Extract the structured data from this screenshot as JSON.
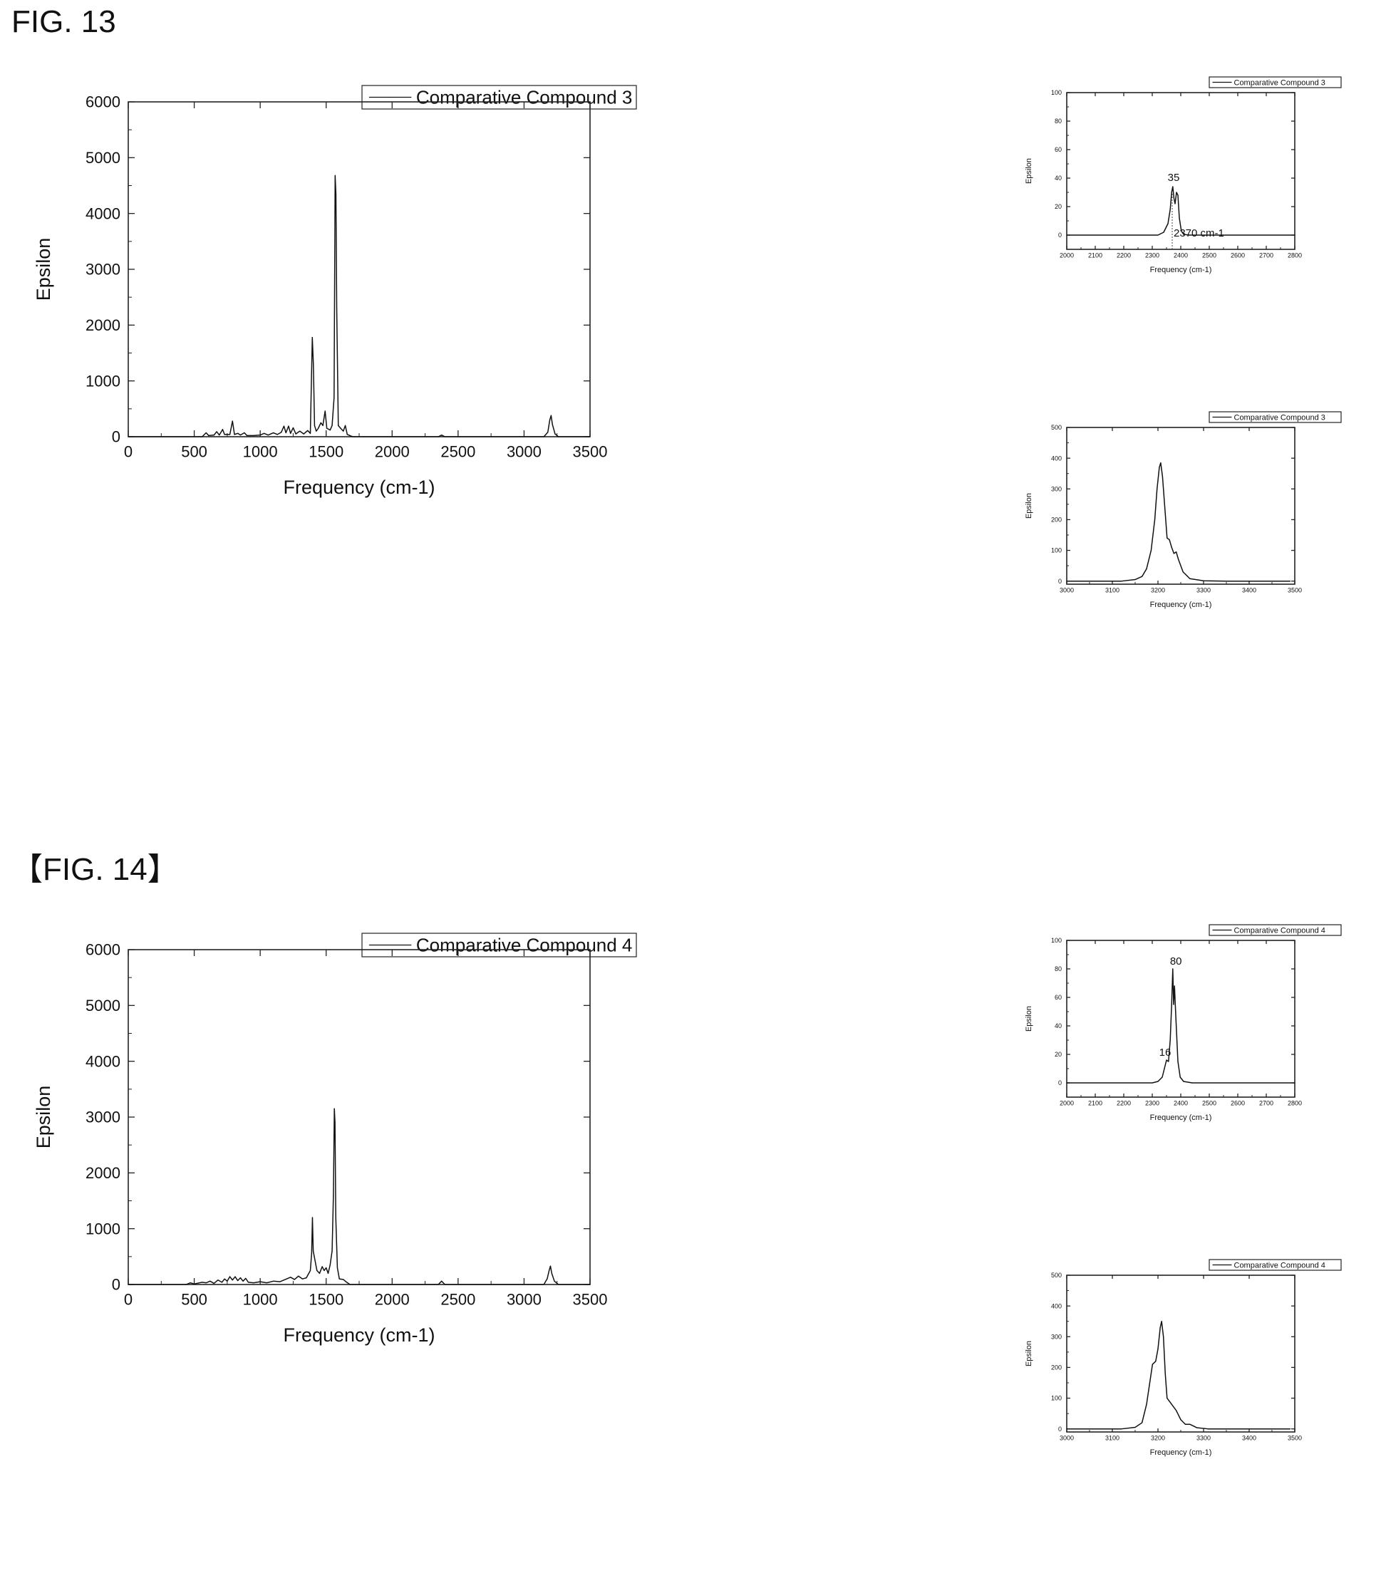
{
  "figures": [
    {
      "label": "FIG. 13"
    },
    {
      "label": "【FIG. 14】"
    }
  ],
  "chart_data": [
    {
      "type": "line",
      "figure": "FIG. 13",
      "legend": "Comparative Compound 3",
      "xlabel": "Frequency (cm-1)",
      "ylabel": "Epsilon",
      "xlim": [
        0,
        3500
      ],
      "ylim": [
        0,
        6000
      ],
      "xticks": [
        0,
        500,
        1000,
        1500,
        2000,
        2500,
        3000,
        3500
      ],
      "yticks": [
        0,
        1000,
        2000,
        3000,
        4000,
        5000,
        6000
      ],
      "series": [
        {
          "name": "Comparative Compound 3",
          "color": "#111111",
          "points": [
            [
              0,
              0
            ],
            [
              560,
              0
            ],
            [
              590,
              70
            ],
            [
              610,
              20
            ],
            [
              650,
              30
            ],
            [
              670,
              90
            ],
            [
              690,
              30
            ],
            [
              715,
              130
            ],
            [
              730,
              40
            ],
            [
              770,
              40
            ],
            [
              790,
              280
            ],
            [
              805,
              40
            ],
            [
              830,
              60
            ],
            [
              850,
              30
            ],
            [
              880,
              70
            ],
            [
              900,
              20
            ],
            [
              950,
              20
            ],
            [
              1000,
              30
            ],
            [
              1030,
              60
            ],
            [
              1060,
              30
            ],
            [
              1100,
              70
            ],
            [
              1130,
              40
            ],
            [
              1160,
              80
            ],
            [
              1180,
              190
            ],
            [
              1195,
              70
            ],
            [
              1215,
              190
            ],
            [
              1230,
              60
            ],
            [
              1250,
              160
            ],
            [
              1270,
              50
            ],
            [
              1300,
              100
            ],
            [
              1330,
              50
            ],
            [
              1360,
              110
            ],
            [
              1380,
              60
            ],
            [
              1395,
              1780
            ],
            [
              1403,
              1300
            ],
            [
              1412,
              200
            ],
            [
              1425,
              100
            ],
            [
              1440,
              150
            ],
            [
              1460,
              250
            ],
            [
              1475,
              200
            ],
            [
              1492,
              460
            ],
            [
              1505,
              150
            ],
            [
              1530,
              120
            ],
            [
              1545,
              200
            ],
            [
              1560,
              700
            ],
            [
              1568,
              4680
            ],
            [
              1574,
              4350
            ],
            [
              1580,
              2300
            ],
            [
              1592,
              200
            ],
            [
              1610,
              150
            ],
            [
              1630,
              100
            ],
            [
              1645,
              200
            ],
            [
              1660,
              40
            ],
            [
              1700,
              0
            ],
            [
              2350,
              0
            ],
            [
              2375,
              30
            ],
            [
              2400,
              0
            ],
            [
              3150,
              0
            ],
            [
              3180,
              80
            ],
            [
              3195,
              300
            ],
            [
              3205,
              380
            ],
            [
              3215,
              220
            ],
            [
              3235,
              50
            ],
            [
              3260,
              0
            ],
            [
              3500,
              0
            ]
          ]
        }
      ]
    },
    {
      "type": "line",
      "figure": "FIG. 13",
      "legend": "Comparative Compound 3",
      "xlabel": "Frequency (cm-1)",
      "ylabel": "Epsilon",
      "xlim": [
        2000,
        2800
      ],
      "ylim": [
        -10,
        100
      ],
      "xticks": [
        2000,
        2100,
        2200,
        2300,
        2400,
        2500,
        2600,
        2700,
        2800
      ],
      "yticks": [
        0,
        20,
        40,
        60,
        80,
        100
      ],
      "annotations": [
        {
          "text": "35",
          "x": 2370,
          "y": 35
        },
        {
          "text": "2370 cm-1",
          "x": 2370,
          "y": -4
        }
      ],
      "vline": 2370,
      "series": [
        {
          "name": "Comparative Compound 3",
          "color": "#111111",
          "points": [
            [
              2000,
              0
            ],
            [
              2320,
              0
            ],
            [
              2340,
              2
            ],
            [
              2355,
              8
            ],
            [
              2363,
              18
            ],
            [
              2368,
              30
            ],
            [
              2372,
              34
            ],
            [
              2376,
              26
            ],
            [
              2380,
              22
            ],
            [
              2385,
              30
            ],
            [
              2390,
              28
            ],
            [
              2395,
              12
            ],
            [
              2402,
              3
            ],
            [
              2410,
              0.5
            ],
            [
              2430,
              0
            ],
            [
              2800,
              0
            ]
          ]
        }
      ]
    },
    {
      "type": "line",
      "figure": "FIG. 13",
      "legend": "Comparative Compound 3",
      "xlabel": "Frequency (cm-1)",
      "ylabel": "Epsilon",
      "xlim": [
        3000,
        3500
      ],
      "ylim": [
        -10,
        500
      ],
      "xticks": [
        3000,
        3100,
        3200,
        3300,
        3400,
        3500
      ],
      "yticks": [
        0,
        100,
        200,
        300,
        400,
        500
      ],
      "series": [
        {
          "name": "Comparative Compound 3",
          "color": "#111111",
          "points": [
            [
              3000,
              0
            ],
            [
              3120,
              0
            ],
            [
              3150,
              5
            ],
            [
              3165,
              15
            ],
            [
              3175,
              40
            ],
            [
              3185,
              100
            ],
            [
              3193,
              200
            ],
            [
              3198,
              300
            ],
            [
              3203,
              370
            ],
            [
              3206,
              385
            ],
            [
              3210,
              340
            ],
            [
              3215,
              240
            ],
            [
              3220,
              140
            ],
            [
              3225,
              135
            ],
            [
              3230,
              110
            ],
            [
              3235,
              90
            ],
            [
              3240,
              95
            ],
            [
              3245,
              70
            ],
            [
              3255,
              30
            ],
            [
              3270,
              8
            ],
            [
              3300,
              1
            ],
            [
              3350,
              0
            ],
            [
              3490,
              0
            ]
          ]
        }
      ]
    },
    {
      "type": "line",
      "figure": "【FIG. 14】",
      "legend": "Comparative Compound 4",
      "xlabel": "Frequency (cm-1)",
      "ylabel": "Epsilon",
      "xlim": [
        0,
        3500
      ],
      "ylim": [
        0,
        6000
      ],
      "xticks": [
        0,
        500,
        1000,
        1500,
        2000,
        2500,
        3000,
        3500
      ],
      "yticks": [
        0,
        1000,
        2000,
        3000,
        4000,
        5000,
        6000
      ],
      "series": [
        {
          "name": "Comparative Compound 4",
          "color": "#111111",
          "points": [
            [
              0,
              0
            ],
            [
              440,
              0
            ],
            [
              470,
              30
            ],
            [
              500,
              10
            ],
            [
              560,
              40
            ],
            [
              590,
              30
            ],
            [
              620,
              60
            ],
            [
              650,
              20
            ],
            [
              680,
              80
            ],
            [
              710,
              40
            ],
            [
              730,
              100
            ],
            [
              750,
              60
            ],
            [
              770,
              140
            ],
            [
              790,
              80
            ],
            [
              810,
              140
            ],
            [
              830,
              70
            ],
            [
              850,
              120
            ],
            [
              870,
              60
            ],
            [
              890,
              110
            ],
            [
              910,
              40
            ],
            [
              950,
              30
            ],
            [
              1000,
              50
            ],
            [
              1050,
              30
            ],
            [
              1100,
              60
            ],
            [
              1150,
              50
            ],
            [
              1200,
              100
            ],
            [
              1230,
              130
            ],
            [
              1260,
              90
            ],
            [
              1290,
              150
            ],
            [
              1320,
              100
            ],
            [
              1350,
              120
            ],
            [
              1380,
              250
            ],
            [
              1390,
              560
            ],
            [
              1396,
              1200
            ],
            [
              1402,
              600
            ],
            [
              1410,
              500
            ],
            [
              1430,
              250
            ],
            [
              1450,
              200
            ],
            [
              1470,
              320
            ],
            [
              1485,
              250
            ],
            [
              1500,
              300
            ],
            [
              1515,
              200
            ],
            [
              1530,
              350
            ],
            [
              1545,
              600
            ],
            [
              1555,
              1600
            ],
            [
              1562,
              3150
            ],
            [
              1567,
              2900
            ],
            [
              1573,
              1200
            ],
            [
              1585,
              300
            ],
            [
              1600,
              100
            ],
            [
              1630,
              90
            ],
            [
              1650,
              50
            ],
            [
              1680,
              0
            ],
            [
              2350,
              0
            ],
            [
              2375,
              60
            ],
            [
              2400,
              0
            ],
            [
              3150,
              0
            ],
            [
              3175,
              100
            ],
            [
              3190,
              250
            ],
            [
              3200,
              330
            ],
            [
              3210,
              200
            ],
            [
              3230,
              60
            ],
            [
              3260,
              0
            ],
            [
              3500,
              0
            ]
          ]
        }
      ]
    },
    {
      "type": "line",
      "figure": "【FIG. 14】",
      "legend": "Comparative Compound 4",
      "xlabel": "Frequency (cm-1)",
      "ylabel": "Epsilon",
      "xlim": [
        2000,
        2800
      ],
      "ylim": [
        -10,
        100
      ],
      "xticks": [
        2000,
        2100,
        2200,
        2300,
        2400,
        2500,
        2600,
        2700,
        2800
      ],
      "yticks": [
        0,
        20,
        40,
        60,
        80,
        100
      ],
      "annotations": [
        {
          "text": "80",
          "x": 2378,
          "y": 80
        },
        {
          "text": "16",
          "x": 2340,
          "y": 16
        }
      ],
      "series": [
        {
          "name": "Comparative Compound 4",
          "color": "#111111",
          "points": [
            [
              2000,
              0
            ],
            [
              2300,
              0
            ],
            [
              2320,
              1
            ],
            [
              2335,
              4
            ],
            [
              2345,
              12
            ],
            [
              2350,
              16
            ],
            [
              2357,
              15
            ],
            [
              2363,
              30
            ],
            [
              2368,
              55
            ],
            [
              2372,
              80
            ],
            [
              2375,
              55
            ],
            [
              2378,
              68
            ],
            [
              2383,
              45
            ],
            [
              2390,
              15
            ],
            [
              2398,
              4
            ],
            [
              2410,
              1
            ],
            [
              2440,
              0
            ],
            [
              2800,
              0
            ]
          ]
        }
      ]
    },
    {
      "type": "line",
      "figure": "【FIG. 14】",
      "legend": "Comparative Compound 4",
      "xlabel": "Frequency (cm-1)",
      "ylabel": "Epsilon",
      "xlim": [
        3000,
        3500
      ],
      "ylim": [
        -10,
        500
      ],
      "xticks": [
        3000,
        3100,
        3200,
        3300,
        3400,
        3500
      ],
      "yticks": [
        0,
        100,
        200,
        300,
        400,
        500
      ],
      "series": [
        {
          "name": "Comparative Compound 4",
          "color": "#111111",
          "points": [
            [
              3000,
              0
            ],
            [
              3120,
              0
            ],
            [
              3150,
              5
            ],
            [
              3165,
              20
            ],
            [
              3175,
              80
            ],
            [
              3182,
              150
            ],
            [
              3188,
              210
            ],
            [
              3195,
              220
            ],
            [
              3200,
              260
            ],
            [
              3205,
              330
            ],
            [
              3208,
              350
            ],
            [
              3212,
              300
            ],
            [
              3216,
              180
            ],
            [
              3220,
              100
            ],
            [
              3225,
              90
            ],
            [
              3230,
              80
            ],
            [
              3235,
              70
            ],
            [
              3240,
              60
            ],
            [
              3250,
              30
            ],
            [
              3260,
              15
            ],
            [
              3270,
              15
            ],
            [
              3285,
              4
            ],
            [
              3310,
              0
            ],
            [
              3490,
              0
            ]
          ]
        }
      ]
    }
  ]
}
